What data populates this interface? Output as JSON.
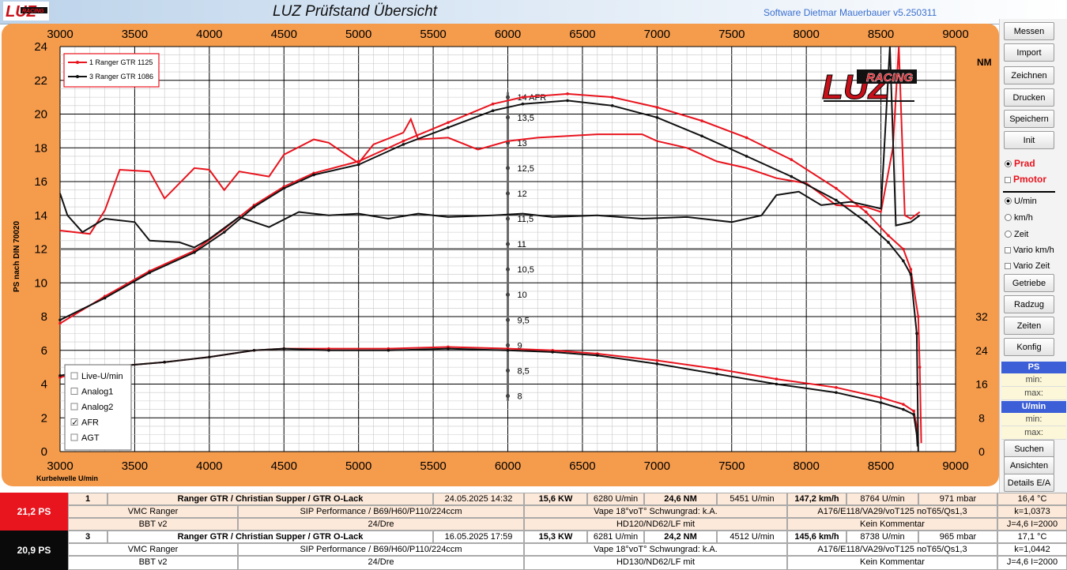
{
  "app": {
    "title": "LUZ Prüfstand  Übersicht",
    "software": "Software Dietmar Mauerbauer v5.250311",
    "logo_text": "RACING"
  },
  "chart_data": {
    "type": "line",
    "x_ticks": [
      "3000",
      "3500",
      "4000",
      "4500",
      "5000",
      "5500",
      "6000",
      "6500",
      "7000",
      "7500",
      "8000",
      "8500",
      "9000"
    ],
    "xlim": [
      3000,
      9000
    ],
    "ylim_left": [
      0,
      24
    ],
    "y_ticks_left": [
      "0",
      "2",
      "4",
      "6",
      "8",
      "10",
      "12",
      "14",
      "16",
      "18",
      "20",
      "22",
      "24"
    ],
    "ylabel": "PS nach DIN 70020",
    "xlabel": "Kurbelwelle U/min",
    "nm_label": "NM",
    "nm_ticks": [
      {
        "value": "0",
        "at": 0
      },
      {
        "value": "8",
        "at": 2
      },
      {
        "value": "16",
        "at": 4
      },
      {
        "value": "24",
        "at": 6
      },
      {
        "value": "32",
        "at": 8
      }
    ],
    "afr_ticks": [
      {
        "label": "14 AFR",
        "at": 21
      },
      {
        "label": "13,5",
        "at": 19.8
      },
      {
        "label": "13",
        "at": 18.3
      },
      {
        "label": "12,5",
        "at": 16.8
      },
      {
        "label": "12",
        "at": 15.3
      },
      {
        "label": "11,5",
        "at": 13.8
      },
      {
        "label": "11",
        "at": 12.3
      },
      {
        "label": "10,5",
        "at": 10.8
      },
      {
        "label": "10",
        "at": 9.3
      },
      {
        "label": "9,5",
        "at": 7.8
      },
      {
        "label": "9",
        "at": 6.3
      },
      {
        "label": "8,5",
        "at": 4.8
      },
      {
        "label": "8",
        "at": 3.3
      }
    ],
    "series": [
      {
        "name": "1  Ranger GTR 1125",
        "color": "#e8141e",
        "power": [
          [
            3000,
            7.6
          ],
          [
            3300,
            9.2
          ],
          [
            3600,
            10.7
          ],
          [
            3900,
            11.9
          ],
          [
            4100,
            13.2
          ],
          [
            4300,
            14.6
          ],
          [
            4500,
            15.7
          ],
          [
            4700,
            16.5
          ],
          [
            5000,
            17.2
          ],
          [
            5300,
            18.4
          ],
          [
            5600,
            19.5
          ],
          [
            5900,
            20.6
          ],
          [
            6100,
            21.0
          ],
          [
            6400,
            21.2
          ],
          [
            6700,
            21.0
          ],
          [
            7000,
            20.4
          ],
          [
            7300,
            19.6
          ],
          [
            7600,
            18.6
          ],
          [
            7900,
            17.3
          ],
          [
            8200,
            15.6
          ],
          [
            8400,
            14.2
          ],
          [
            8550,
            12.8
          ],
          [
            8650,
            12.0
          ],
          [
            8700,
            10.8
          ],
          [
            8750,
            8.0
          ],
          [
            8760,
            5
          ],
          [
            8770,
            0.5
          ]
        ],
        "torque": [
          [
            3000,
            4.4
          ],
          [
            3300,
            5.0
          ],
          [
            3700,
            5.3
          ],
          [
            4000,
            5.6
          ],
          [
            4300,
            6.0
          ],
          [
            4500,
            6.1
          ],
          [
            4800,
            6.1
          ],
          [
            5200,
            6.1
          ],
          [
            5600,
            6.2
          ],
          [
            6000,
            6.1
          ],
          [
            6300,
            6.0
          ],
          [
            6600,
            5.8
          ],
          [
            7000,
            5.4
          ],
          [
            7400,
            4.9
          ],
          [
            7800,
            4.3
          ],
          [
            8200,
            3.8
          ],
          [
            8500,
            3.2
          ],
          [
            8650,
            2.8
          ],
          [
            8720,
            2.4
          ],
          [
            8740,
            1.5
          ],
          [
            8750,
            0.5
          ]
        ],
        "afr": [
          [
            3000,
            13.1
          ],
          [
            3200,
            12.9
          ],
          [
            3300,
            14.3
          ],
          [
            3400,
            16.7
          ],
          [
            3600,
            16.6
          ],
          [
            3700,
            15.0
          ],
          [
            3900,
            16.8
          ],
          [
            4000,
            16.7
          ],
          [
            4100,
            15.5
          ],
          [
            4200,
            16.6
          ],
          [
            4400,
            16.3
          ],
          [
            4500,
            17.6
          ],
          [
            4700,
            18.5
          ],
          [
            4800,
            18.3
          ],
          [
            5000,
            17.1
          ],
          [
            5100,
            18.2
          ],
          [
            5300,
            18.9
          ],
          [
            5350,
            19.7
          ],
          [
            5400,
            18.5
          ],
          [
            5600,
            18.6
          ],
          [
            5800,
            17.9
          ],
          [
            6000,
            18.4
          ],
          [
            6200,
            18.6
          ],
          [
            6400,
            18.7
          ],
          [
            6600,
            18.8
          ],
          [
            6900,
            18.8
          ],
          [
            7000,
            18.4
          ],
          [
            7200,
            18.0
          ],
          [
            7400,
            17.2
          ],
          [
            7600,
            16.8
          ],
          [
            7800,
            16.2
          ],
          [
            8000,
            15.9
          ],
          [
            8200,
            14.6
          ],
          [
            8400,
            14.5
          ],
          [
            8500,
            14.2
          ],
          [
            8580,
            18.0
          ],
          [
            8620,
            24.0
          ],
          [
            8660,
            14.0
          ],
          [
            8700,
            13.8
          ],
          [
            8760,
            14.2
          ]
        ]
      },
      {
        "name": "3  Ranger GTR 1086",
        "color": "#111111",
        "power": [
          [
            3000,
            7.8
          ],
          [
            3300,
            9.1
          ],
          [
            3600,
            10.6
          ],
          [
            3900,
            11.8
          ],
          [
            4100,
            13.0
          ],
          [
            4300,
            14.5
          ],
          [
            4500,
            15.6
          ],
          [
            4700,
            16.4
          ],
          [
            5000,
            17.0
          ],
          [
            5300,
            18.2
          ],
          [
            5600,
            19.2
          ],
          [
            5900,
            20.2
          ],
          [
            6100,
            20.6
          ],
          [
            6400,
            20.8
          ],
          [
            6700,
            20.5
          ],
          [
            7000,
            19.8
          ],
          [
            7300,
            18.7
          ],
          [
            7600,
            17.5
          ],
          [
            7900,
            16.3
          ],
          [
            8200,
            14.9
          ],
          [
            8400,
            13.6
          ],
          [
            8550,
            12.4
          ],
          [
            8650,
            11.3
          ],
          [
            8700,
            10.5
          ],
          [
            8740,
            7.0
          ],
          [
            8745,
            4
          ],
          [
            8750,
            0
          ]
        ],
        "torque": [
          [
            3000,
            4.5
          ],
          [
            3300,
            5.0
          ],
          [
            3700,
            5.3
          ],
          [
            4000,
            5.6
          ],
          [
            4300,
            6.0
          ],
          [
            4500,
            6.1
          ],
          [
            4800,
            6.0
          ],
          [
            5200,
            6.0
          ],
          [
            5600,
            6.1
          ],
          [
            6000,
            6.0
          ],
          [
            6300,
            5.9
          ],
          [
            6600,
            5.7
          ],
          [
            7000,
            5.2
          ],
          [
            7400,
            4.6
          ],
          [
            7800,
            4.0
          ],
          [
            8200,
            3.5
          ],
          [
            8500,
            2.9
          ],
          [
            8650,
            2.5
          ],
          [
            8720,
            2.2
          ],
          [
            8740,
            1.0
          ],
          [
            8745,
            0.3
          ]
        ],
        "afr": [
          [
            3000,
            15.3
          ],
          [
            3050,
            14.0
          ],
          [
            3150,
            13.0
          ],
          [
            3300,
            13.8
          ],
          [
            3500,
            13.6
          ],
          [
            3600,
            12.5
          ],
          [
            3800,
            12.4
          ],
          [
            3900,
            12.1
          ],
          [
            4000,
            12.6
          ],
          [
            4200,
            13.9
          ],
          [
            4400,
            13.3
          ],
          [
            4600,
            14.2
          ],
          [
            4800,
            14.0
          ],
          [
            5000,
            14.1
          ],
          [
            5200,
            13.8
          ],
          [
            5400,
            14.1
          ],
          [
            5600,
            13.9
          ],
          [
            5900,
            14.0
          ],
          [
            6100,
            14.1
          ],
          [
            6300,
            13.9
          ],
          [
            6600,
            14.0
          ],
          [
            6900,
            13.8
          ],
          [
            7200,
            13.9
          ],
          [
            7500,
            13.6
          ],
          [
            7700,
            14.0
          ],
          [
            7800,
            15.2
          ],
          [
            7950,
            15.4
          ],
          [
            8100,
            14.6
          ],
          [
            8300,
            14.8
          ],
          [
            8500,
            14.4
          ],
          [
            8560,
            24.0
          ],
          [
            8600,
            13.4
          ],
          [
            8700,
            13.6
          ],
          [
            8760,
            14.0
          ]
        ]
      }
    ],
    "checkboxes": [
      {
        "label": "Live-U/min",
        "checked": false
      },
      {
        "label": "Analog1",
        "checked": false
      },
      {
        "label": "Analog2",
        "checked": false
      },
      {
        "label": "AFR",
        "checked": true
      },
      {
        "label": "AGT",
        "checked": false
      }
    ]
  },
  "right_panel": {
    "buttons_top": [
      "Messen",
      "Import",
      "Zeichnen",
      "Drucken",
      "Speichern",
      "Init"
    ],
    "prad": "Prad",
    "pmotor": "Pmotor",
    "options": [
      "U/min",
      "km/h",
      "Zeit",
      "Vario km/h",
      "Vario Zeit"
    ],
    "buttons_mid": [
      "Getriebe",
      "Radzug",
      "Zeiten",
      "Konfig"
    ],
    "ps_header": "PS",
    "umin_header": "U/min",
    "min_label": "min:",
    "max_label": "max:",
    "buttons_bottom": [
      "Suchen",
      "Ansichten",
      "Details E/A"
    ]
  },
  "runs": [
    {
      "badge": "21,2  PS",
      "badge_color": "#e8141e",
      "row1": [
        "1",
        "Ranger GTR / Christian Supper / GTR O-Lack",
        "24.05.2025 14:32",
        "15,6  KW",
        "6280  U/min",
        "24,6  NM",
        "5451  U/min",
        "147,2 km/h",
        "8764  U/min",
        "971  mbar",
        "16,4 °C"
      ],
      "row2": [
        "VMC Ranger",
        "SIP Performance / B69/H60/P110/224ccm",
        "Vape 18°voT° Schwungrad: k.A.",
        "A176/E118/VA29/voT125 noT65/Qs1,3",
        "k=1,0373"
      ],
      "row3": [
        "BBT v2",
        "24/Dre",
        "HD120/ND62/LF mit",
        "Kein Kommentar",
        "J=4,6 I=2000"
      ]
    },
    {
      "badge": "20,9  PS",
      "badge_color": "#0a0a0a",
      "row1": [
        "3",
        "Ranger GTR / Christian Supper / GTR O-Lack",
        "16.05.2025 17:59",
        "15,3  KW",
        "6281  U/min",
        "24,2  NM",
        "4512  U/min",
        "145,6 km/h",
        "8738  U/min",
        "965  mbar",
        "17,1 °C"
      ],
      "row2": [
        "VMC Ranger",
        "SIP Performance / B69/H60/P110/224ccm",
        "Vape 18°voT° Schwungrad: k.A.",
        "A176/E118/VA29/voT125 noT65/Qs1,3",
        "k=1,0442"
      ],
      "row3": [
        "BBT v2",
        "24/Dre",
        "HD130/ND62/LF mit",
        "Kein Kommentar",
        "J=4,6 I=2000"
      ]
    }
  ]
}
